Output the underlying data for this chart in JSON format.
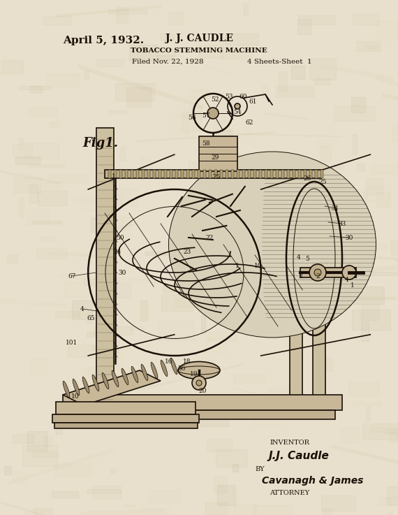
{
  "bg_color": "#e8e0cc",
  "line_color": "#1a1008",
  "fig_width": 5.7,
  "fig_height": 7.37,
  "dpi": 100,
  "header_date": "April 5, 1932.",
  "header_name": "J. J. CAUDLE",
  "header_title": "TOBACCO STEMMING MACHINE",
  "header_filed": "Filed Nov. 22, 1928",
  "header_sheets": "4 Sheets-Sheet  1",
  "fig_label": "Fig1.",
  "inventor_label": "INVENTOR",
  "inventor_sig": "J.J. Caudle",
  "by_label": "BY",
  "attorney_sig": "Cavanagh & James",
  "attorney_label": "ATTORNEY"
}
